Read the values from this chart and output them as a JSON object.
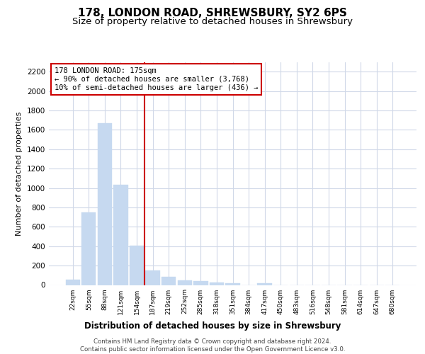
{
  "title": "178, LONDON ROAD, SHREWSBURY, SY2 6PS",
  "subtitle": "Size of property relative to detached houses in Shrewsbury",
  "xlabel": "Distribution of detached houses by size in Shrewsbury",
  "ylabel": "Number of detached properties",
  "categories": [
    "22sqm",
    "55sqm",
    "88sqm",
    "121sqm",
    "154sqm",
    "187sqm",
    "219sqm",
    "252sqm",
    "285sqm",
    "318sqm",
    "351sqm",
    "384sqm",
    "417sqm",
    "450sqm",
    "483sqm",
    "516sqm",
    "548sqm",
    "581sqm",
    "614sqm",
    "647sqm",
    "680sqm"
  ],
  "values": [
    52,
    745,
    1672,
    1033,
    407,
    152,
    83,
    47,
    42,
    28,
    18,
    0,
    18,
    0,
    0,
    0,
    0,
    0,
    0,
    0,
    0
  ],
  "bar_color": "#c6d9f0",
  "bar_edge_color": "#c6d9f0",
  "vline_color": "#cc0000",
  "vline_pos": 4.5,
  "annotation_text": "178 LONDON ROAD: 175sqm\n← 90% of detached houses are smaller (3,768)\n10% of semi-detached houses are larger (436) →",
  "ylim": [
    0,
    2300
  ],
  "yticks": [
    0,
    200,
    400,
    600,
    800,
    1000,
    1200,
    1400,
    1600,
    1800,
    2000,
    2200
  ],
  "grid_color": "#d0d8e8",
  "footer_line1": "Contains HM Land Registry data © Crown copyright and database right 2024.",
  "footer_line2": "Contains public sector information licensed under the Open Government Licence v3.0.",
  "title_fontsize": 11,
  "subtitle_fontsize": 9.5
}
